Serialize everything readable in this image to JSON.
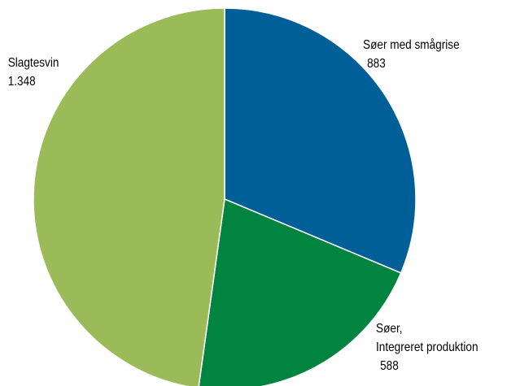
{
  "chart_data": {
    "type": "pie",
    "categories": [
      "Søer med smågrise",
      "Søer,\nIntegreret produktion",
      "Slagtesvin"
    ],
    "values": [
      883,
      588,
      1348
    ],
    "value_labels": [
      "883",
      "588",
      "1.348"
    ],
    "colors": [
      "#005f96",
      "#00843f",
      "#9bbb59"
    ]
  }
}
